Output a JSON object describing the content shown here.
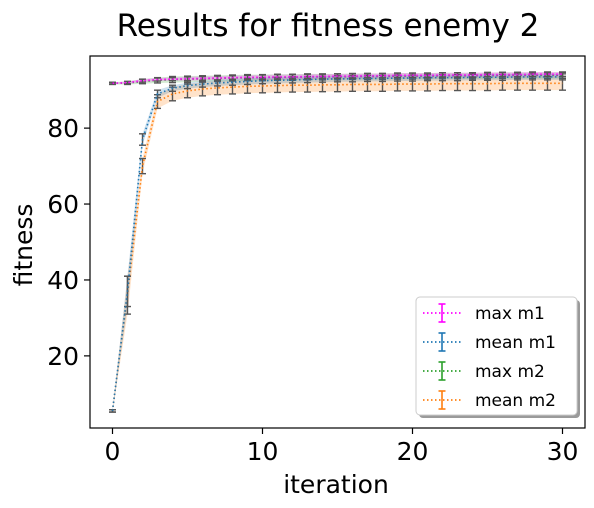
{
  "chart_data": {
    "type": "line",
    "title": "Results for fitness enemy 2",
    "xlabel": "iteration",
    "ylabel": "fitness",
    "xlim": [
      -1.5,
      31.5
    ],
    "ylim": [
      1,
      99
    ],
    "xticks": [
      0,
      10,
      20,
      30
    ],
    "yticks": [
      20,
      40,
      60,
      80
    ],
    "grid": false,
    "legend_position": "lower-right",
    "series": [
      {
        "name": "max m1",
        "color": "#ff00ff",
        "style": "dotted",
        "x": [
          0,
          1,
          2,
          3,
          4,
          5,
          6,
          7,
          8,
          9,
          10,
          11,
          12,
          13,
          14,
          15,
          16,
          17,
          18,
          19,
          20,
          21,
          22,
          23,
          24,
          25,
          26,
          27,
          28,
          29,
          30
        ],
        "y": [
          91.8,
          92.0,
          92.5,
          92.8,
          92.9,
          93.0,
          93.1,
          93.2,
          93.3,
          93.4,
          93.4,
          93.5,
          93.5,
          93.6,
          93.6,
          93.7,
          93.7,
          93.8,
          93.8,
          93.9,
          93.9,
          93.9,
          94.0,
          94.0,
          94.0,
          94.1,
          94.1,
          94.1,
          94.2,
          94.2,
          94.2
        ],
        "err": [
          0.2,
          0.3,
          0.4,
          0.4,
          0.4,
          0.5,
          0.5,
          0.5,
          0.5,
          0.5,
          0.6,
          0.6,
          0.6,
          0.6,
          0.6,
          0.6,
          0.6,
          0.6,
          0.6,
          0.6,
          0.6,
          0.6,
          0.6,
          0.6,
          0.6,
          0.6,
          0.6,
          0.6,
          0.6,
          0.6,
          0.6
        ]
      },
      {
        "name": "mean m1",
        "color": "#1f77b4",
        "style": "dotted",
        "x": [
          0,
          1,
          2,
          3,
          4,
          5,
          6,
          7,
          8,
          9,
          10,
          11,
          12,
          13,
          14,
          15,
          16,
          17,
          18,
          19,
          20,
          21,
          22,
          23,
          24,
          25,
          26,
          27,
          28,
          29,
          30
        ],
        "y": [
          5.5,
          37.0,
          77.0,
          89.0,
          90.5,
          91.2,
          91.6,
          91.9,
          92.1,
          92.3,
          92.5,
          92.6,
          92.7,
          92.8,
          92.9,
          93.0,
          93.0,
          93.1,
          93.1,
          93.2,
          93.2,
          93.3,
          93.3,
          93.3,
          93.4,
          93.4,
          93.4,
          93.5,
          93.5,
          93.5,
          93.5
        ],
        "err": [
          0.3,
          4.0,
          1.5,
          1.0,
          0.8,
          0.8,
          0.8,
          0.8,
          0.8,
          0.8,
          0.8,
          0.8,
          0.8,
          0.8,
          0.8,
          0.8,
          0.8,
          0.8,
          0.8,
          0.8,
          0.8,
          0.8,
          0.8,
          0.8,
          0.8,
          0.8,
          0.8,
          0.8,
          0.8,
          0.8,
          0.8
        ]
      },
      {
        "name": "max m2",
        "color": "#2ca02c",
        "style": "dotted",
        "x": [
          0,
          1,
          2,
          3,
          4,
          5,
          6,
          7,
          8,
          9,
          10,
          11,
          12,
          13,
          14,
          15,
          16,
          17,
          18,
          19,
          20,
          21,
          22,
          23,
          24,
          25,
          26,
          27,
          28,
          29,
          30
        ],
        "y": [
          91.8,
          91.9,
          92.3,
          92.6,
          92.8,
          92.9,
          93.0,
          93.1,
          93.2,
          93.3,
          93.3,
          93.4,
          93.4,
          93.5,
          93.5,
          93.5,
          93.6,
          93.6,
          93.6,
          93.7,
          93.7,
          93.7,
          93.8,
          93.8,
          93.8,
          93.8,
          93.9,
          93.9,
          93.9,
          93.9,
          93.9
        ],
        "err": [
          0.3,
          0.4,
          0.6,
          0.7,
          0.8,
          0.8,
          0.8,
          0.8,
          0.8,
          0.8,
          0.8,
          0.8,
          0.8,
          0.8,
          0.8,
          0.8,
          0.8,
          0.8,
          0.8,
          0.8,
          0.8,
          0.8,
          0.8,
          0.8,
          0.8,
          0.8,
          0.8,
          0.8,
          0.8,
          0.8,
          0.8
        ]
      },
      {
        "name": "mean m2",
        "color": "#ff7f0e",
        "style": "dotted",
        "x": [
          0,
          1,
          2,
          3,
          4,
          5,
          6,
          7,
          8,
          9,
          10,
          11,
          12,
          13,
          14,
          15,
          16,
          17,
          18,
          19,
          20,
          21,
          22,
          23,
          24,
          25,
          26,
          27,
          28,
          29,
          30
        ],
        "y": [
          5.5,
          36.0,
          70.0,
          87.0,
          89.0,
          89.8,
          90.3,
          90.6,
          90.8,
          91.0,
          91.1,
          91.2,
          91.3,
          91.3,
          91.4,
          91.4,
          91.5,
          91.5,
          91.5,
          91.6,
          91.6,
          91.6,
          91.7,
          91.7,
          91.7,
          91.7,
          91.8,
          91.8,
          91.8,
          91.8,
          91.8
        ],
        "err": [
          0.3,
          5.0,
          2.0,
          1.8,
          1.8,
          1.8,
          1.8,
          1.8,
          1.8,
          1.8,
          1.8,
          1.8,
          1.8,
          1.8,
          1.8,
          1.8,
          1.8,
          1.8,
          1.8,
          1.8,
          1.8,
          1.8,
          1.8,
          1.8,
          1.8,
          1.8,
          1.8,
          1.8,
          1.8,
          1.8,
          1.8
        ]
      }
    ]
  }
}
